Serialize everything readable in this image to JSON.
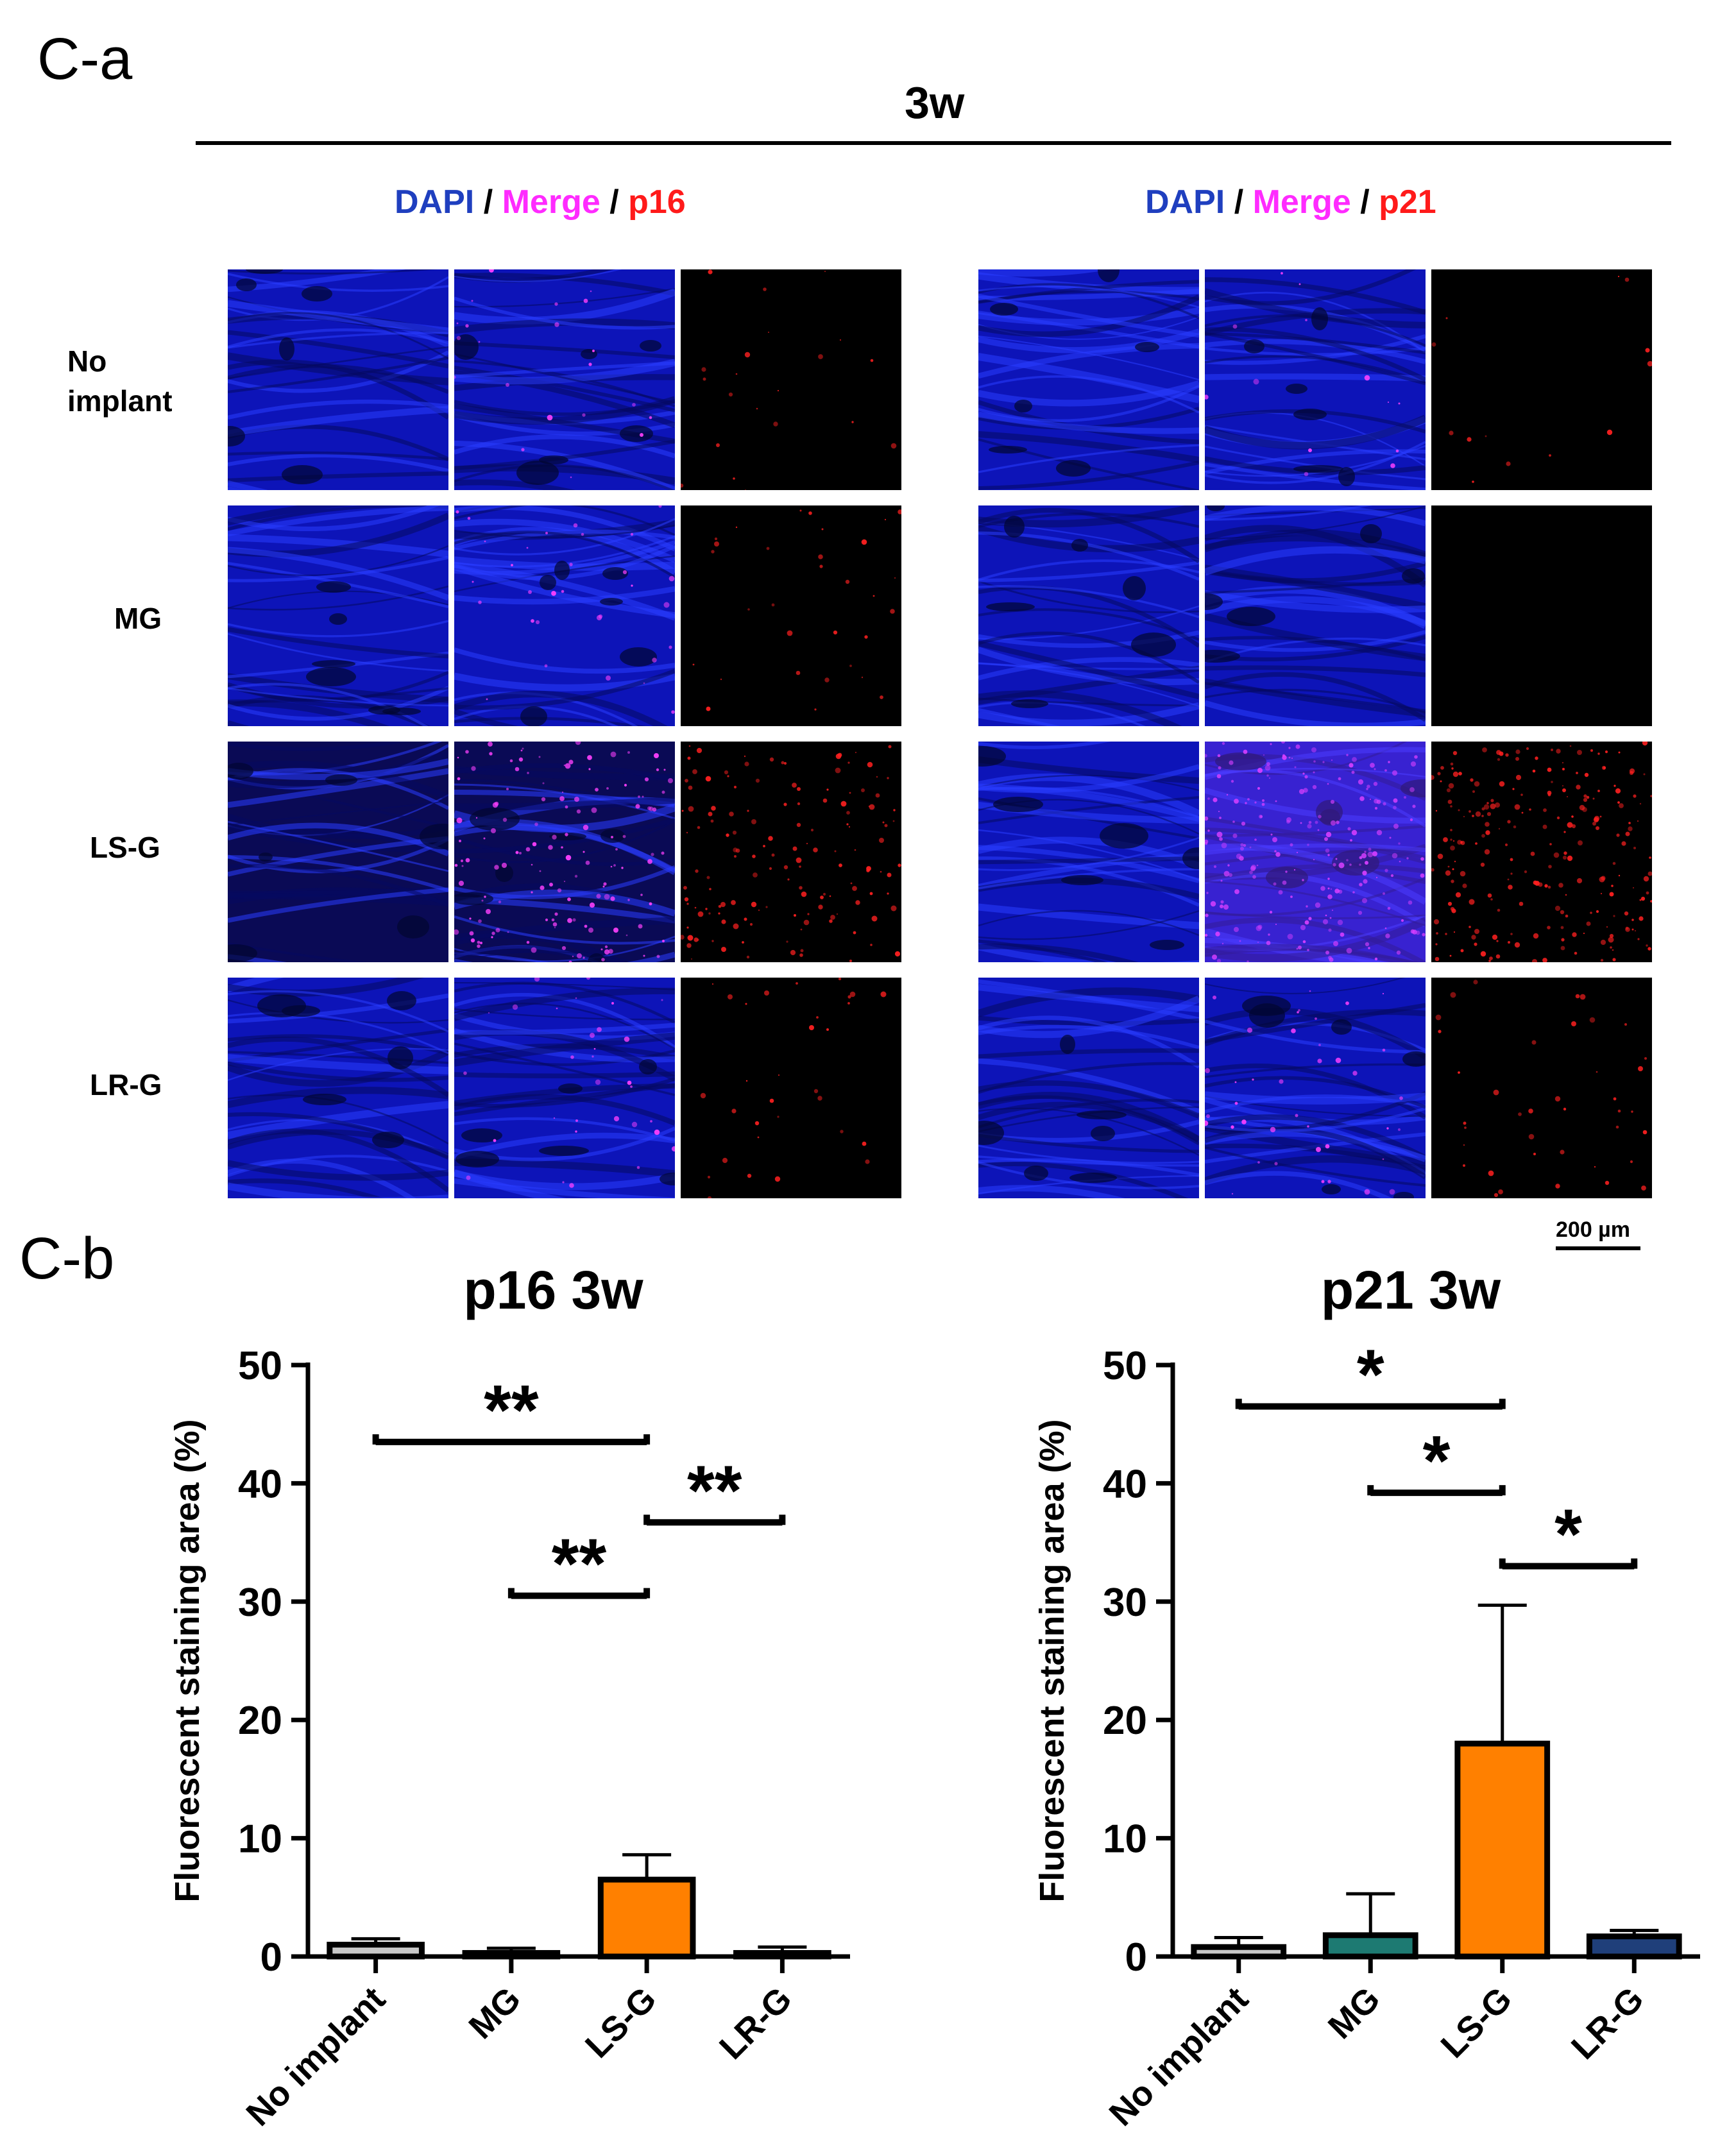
{
  "figure": {
    "panel_a_label": "C-a",
    "panel_b_label": "C-b",
    "timepoint": "3w",
    "scale_bar_label": "200 µm",
    "colors": {
      "dapi": "#1f3fbf",
      "merge": "#ff2bff",
      "red": "#ff1a1a",
      "bar_no_implant": "#c8c8c8",
      "bar_mg": "#1d7a72",
      "bar_lsg": "#ff8000",
      "bar_lrg": "#1f3f7a"
    }
  },
  "microscopy": {
    "left": {
      "dapi": "DAPI",
      "sep1": " / ",
      "merge": "Merge",
      "sep2": " / ",
      "marker": "p16"
    },
    "right": {
      "dapi": "DAPI",
      "sep1": " / ",
      "merge": "Merge",
      "sep2": " / ",
      "marker": "p21"
    },
    "rows": [
      {
        "line1": "No",
        "line2": "implant"
      },
      {
        "line1": "MG",
        "line2": ""
      },
      {
        "line1": "LS-G",
        "line2": ""
      },
      {
        "line1": "LR-G",
        "line2": ""
      }
    ]
  },
  "chart_data": [
    {
      "type": "bar",
      "title": "p16 3w",
      "xlabel": "",
      "ylabel": "Fluorescent staining area (%)",
      "categories": [
        "No implant",
        "MG",
        "LS-G",
        "LR-G"
      ],
      "values": [
        1.0,
        0.3,
        6.5,
        0.3
      ],
      "errors": [
        0.5,
        0.4,
        2.1,
        0.5
      ],
      "colors": [
        "#c8c8c8",
        "#1d7a72",
        "#ff8000",
        "#1f3f7a"
      ],
      "ylim": [
        0,
        50
      ],
      "yticks": [
        0,
        10,
        20,
        30,
        40,
        50
      ],
      "significance": [
        {
          "from": 0,
          "to": 2,
          "y": 43.5,
          "label": "**"
        },
        {
          "from": 1,
          "to": 2,
          "y": 30.5,
          "label": "**"
        },
        {
          "from": 2,
          "to": 3,
          "y": 36.7,
          "label": "**"
        }
      ]
    },
    {
      "type": "bar",
      "title": "p21 3w",
      "xlabel": "",
      "ylabel": "Fluorescent staining area (%)",
      "categories": [
        "No implant",
        "MG",
        "LS-G",
        "LR-G"
      ],
      "values": [
        0.8,
        1.8,
        18.0,
        1.7
      ],
      "errors": [
        0.8,
        3.5,
        11.7,
        0.5
      ],
      "colors": [
        "#c8c8c8",
        "#1d7a72",
        "#ff8000",
        "#1f3f7a"
      ],
      "ylim": [
        0,
        50
      ],
      "yticks": [
        0,
        10,
        20,
        30,
        40,
        50
      ],
      "significance": [
        {
          "from": 0,
          "to": 2,
          "y": 46.5,
          "label": "*"
        },
        {
          "from": 1,
          "to": 2,
          "y": 39.2,
          "label": "*"
        },
        {
          "from": 2,
          "to": 3,
          "y": 33.0,
          "label": "*"
        }
      ]
    }
  ]
}
